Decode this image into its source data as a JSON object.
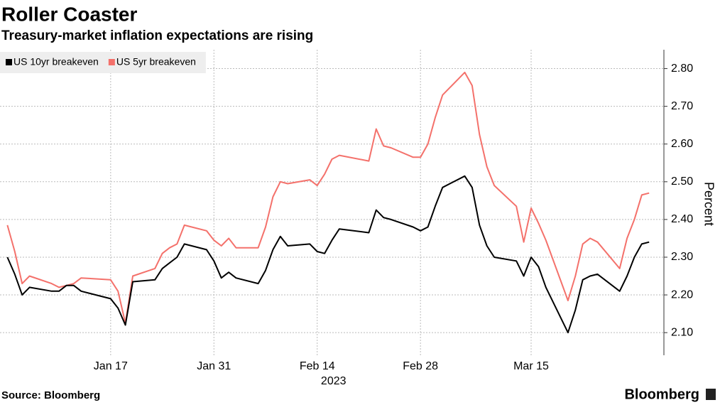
{
  "chart_data": {
    "type": "line",
    "title": "Roller Coaster",
    "subtitle": "Treasury-market inflation expectations are rising",
    "y_label": "Percent",
    "x_year_label": "2023",
    "source": "Source: Bloomberg",
    "brand": "Bloomberg",
    "x": [
      "2023-01-03",
      "2023-01-04",
      "2023-01-05",
      "2023-01-06",
      "2023-01-09",
      "2023-01-10",
      "2023-01-11",
      "2023-01-12",
      "2023-01-13",
      "2023-01-17",
      "2023-01-18",
      "2023-01-19",
      "2023-01-20",
      "2023-01-23",
      "2023-01-24",
      "2023-01-25",
      "2023-01-26",
      "2023-01-27",
      "2023-01-30",
      "2023-01-31",
      "2023-02-01",
      "2023-02-02",
      "2023-02-03",
      "2023-02-06",
      "2023-02-07",
      "2023-02-08",
      "2023-02-09",
      "2023-02-10",
      "2023-02-13",
      "2023-02-14",
      "2023-02-15",
      "2023-02-16",
      "2023-02-17",
      "2023-02-21",
      "2023-02-22",
      "2023-02-23",
      "2023-02-24",
      "2023-02-27",
      "2023-02-28",
      "2023-03-01",
      "2023-03-02",
      "2023-03-03",
      "2023-03-06",
      "2023-03-07",
      "2023-03-08",
      "2023-03-09",
      "2023-03-10",
      "2023-03-13",
      "2023-03-14",
      "2023-03-15",
      "2023-03-16",
      "2023-03-17",
      "2023-03-20",
      "2023-03-21",
      "2023-03-22",
      "2023-03-23",
      "2023-03-24",
      "2023-03-27",
      "2023-03-28",
      "2023-03-29",
      "2023-03-30",
      "2023-03-31"
    ],
    "series": [
      {
        "name": "US 10yr breakeven",
        "color": "#000000",
        "values": [
          2.3,
          2.255,
          2.2,
          2.22,
          2.21,
          2.21,
          2.225,
          2.225,
          2.21,
          2.19,
          2.165,
          2.12,
          2.235,
          2.24,
          2.27,
          2.285,
          2.3,
          2.335,
          2.32,
          2.29,
          2.245,
          2.26,
          2.245,
          2.23,
          2.265,
          2.32,
          2.355,
          2.33,
          2.335,
          2.315,
          2.31,
          2.345,
          2.375,
          2.365,
          2.425,
          2.405,
          2.4,
          2.38,
          2.37,
          2.38,
          2.435,
          2.485,
          2.515,
          2.485,
          2.385,
          2.33,
          2.3,
          2.29,
          2.25,
          2.3,
          2.275,
          2.22,
          2.1,
          2.16,
          2.24,
          2.25,
          2.255,
          2.21,
          2.25,
          2.3,
          2.335,
          2.34
        ]
      },
      {
        "name": "US 5yr breakeven",
        "color": "#f4716b",
        "values": [
          2.385,
          2.315,
          2.23,
          2.25,
          2.23,
          2.22,
          2.225,
          2.23,
          2.245,
          2.24,
          2.21,
          2.125,
          2.25,
          2.27,
          2.31,
          2.325,
          2.335,
          2.385,
          2.37,
          2.345,
          2.33,
          2.35,
          2.325,
          2.325,
          2.38,
          2.46,
          2.5,
          2.495,
          2.505,
          2.49,
          2.52,
          2.56,
          2.57,
          2.555,
          2.64,
          2.595,
          2.59,
          2.565,
          2.565,
          2.6,
          2.67,
          2.73,
          2.79,
          2.755,
          2.625,
          2.54,
          2.49,
          2.435,
          2.34,
          2.43,
          2.39,
          2.345,
          2.185,
          2.25,
          2.335,
          2.35,
          2.34,
          2.27,
          2.35,
          2.4,
          2.465,
          2.47
        ]
      }
    ],
    "xlim": [
      "2023-01-02",
      "2023-04-02"
    ],
    "xticks": [
      {
        "value": "2023-01-17",
        "label": "Jan 17"
      },
      {
        "value": "2023-01-31",
        "label": "Jan 31"
      },
      {
        "value": "2023-02-14",
        "label": "Feb 14"
      },
      {
        "value": "2023-02-28",
        "label": "Feb 28"
      },
      {
        "value": "2023-03-15",
        "label": "Mar 15"
      }
    ],
    "ylim": [
      2.04,
      2.85
    ],
    "yticks": [
      {
        "value": 2.1,
        "label": "2.10"
      },
      {
        "value": 2.2,
        "label": "2.20"
      },
      {
        "value": 2.3,
        "label": "2.30"
      },
      {
        "value": 2.4,
        "label": "2.40"
      },
      {
        "value": 2.5,
        "label": "2.50"
      },
      {
        "value": 2.6,
        "label": "2.60"
      },
      {
        "value": 2.7,
        "label": "2.70"
      },
      {
        "value": 2.8,
        "label": "2.80"
      }
    ],
    "grid": true,
    "legend": "top-left"
  }
}
